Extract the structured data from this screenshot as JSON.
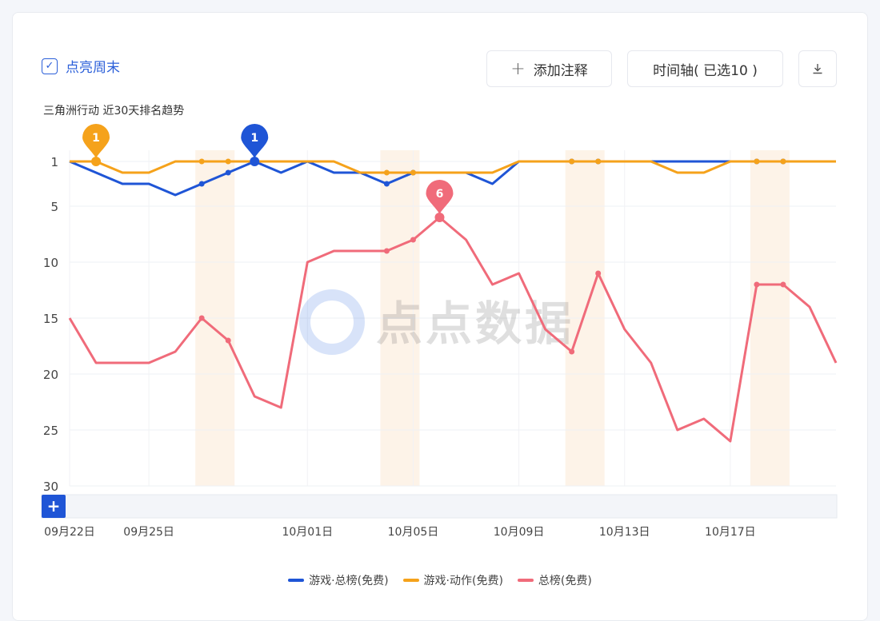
{
  "controls": {
    "highlight_weekend_label": "点亮周末",
    "highlight_weekend_checked": true,
    "add_note_label": "添加注释",
    "add_note_icon": "plus-icon",
    "timeline_label": "时间轴( 已选10 )",
    "download_icon": "download-icon"
  },
  "watermark": "点点数据",
  "chart_data": {
    "type": "line",
    "title": "三角洲行动 近30天排名趋势",
    "xlabel": "",
    "ylabel": "",
    "y_inverted": true,
    "ylim": [
      1,
      30
    ],
    "y_ticks": [
      "1",
      "5",
      "10",
      "15",
      "20",
      "25",
      "30"
    ],
    "x": [
      "09-22",
      "09-23",
      "09-24",
      "09-25",
      "09-26",
      "09-27",
      "09-28",
      "09-29",
      "09-30",
      "10-01",
      "10-02",
      "10-03",
      "10-04",
      "10-05",
      "10-06",
      "10-07",
      "10-08",
      "10-09",
      "10-10",
      "10-11",
      "10-12",
      "10-13",
      "10-14",
      "10-15",
      "10-16",
      "10-17",
      "10-18",
      "10-19",
      "10-20",
      "10-21"
    ],
    "x_tick_labels": [
      {
        "date": "09-22",
        "label": "09月22日"
      },
      {
        "date": "09-25",
        "label": "09月25日"
      },
      {
        "date": "10-01",
        "label": "10月01日"
      },
      {
        "date": "10-05",
        "label": "10月05日"
      },
      {
        "date": "10-09",
        "label": "10月09日"
      },
      {
        "date": "10-13",
        "label": "10月13日"
      },
      {
        "date": "10-17",
        "label": "10月17日"
      }
    ],
    "weekend_highlight": [
      [
        "09-27",
        "09-28"
      ],
      [
        "10-04",
        "10-05"
      ],
      [
        "10-11",
        "10-12"
      ],
      [
        "10-18",
        "10-19"
      ]
    ],
    "grid": true,
    "legend_position": "bottom",
    "series": [
      {
        "name": "游戏·总榜(免费)",
        "color": "#1f55d6",
        "values": [
          1,
          2,
          3,
          3,
          4,
          3,
          2,
          1,
          2,
          1,
          2,
          2,
          3,
          2,
          2,
          2,
          3,
          1,
          1,
          1,
          1,
          1,
          1,
          1,
          1,
          1,
          1,
          1,
          1,
          1
        ],
        "marker": {
          "date": "09-29",
          "label": "1"
        }
      },
      {
        "name": "游戏·动作(免费)",
        "color": "#f5a21b",
        "values": [
          1,
          1,
          2,
          2,
          1,
          1,
          1,
          1,
          1,
          1,
          1,
          2,
          2,
          2,
          2,
          2,
          2,
          1,
          1,
          1,
          1,
          1,
          1,
          2,
          2,
          1,
          1,
          1,
          1,
          1
        ],
        "marker": {
          "date": "09-23",
          "label": "1"
        }
      },
      {
        "name": "总榜(免费)",
        "color": "#f06b7a",
        "values": [
          15,
          19,
          19,
          19,
          18,
          15,
          17,
          22,
          23,
          10,
          9,
          9,
          9,
          8,
          6,
          8,
          12,
          11,
          16,
          18,
          11,
          16,
          19,
          25,
          24,
          26,
          12,
          12,
          14,
          19
        ],
        "marker": {
          "date": "10-06",
          "label": "6"
        }
      }
    ]
  }
}
